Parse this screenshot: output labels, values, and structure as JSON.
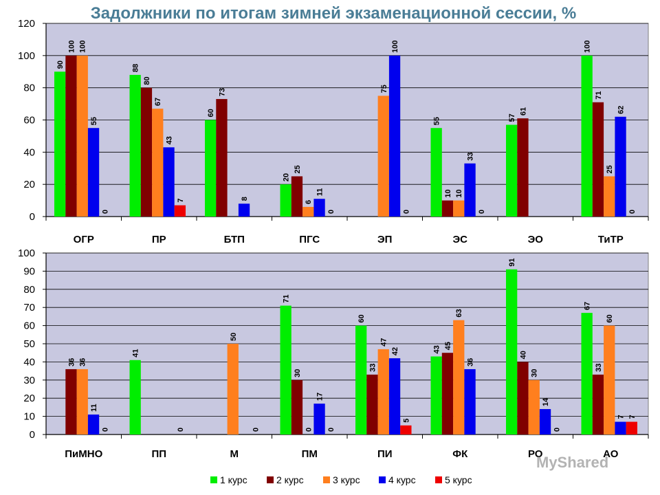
{
  "title": "Задолжники по итогам зимней экзаменационной сессии, %",
  "watermark": "MyShared",
  "legend": [
    "1 курс",
    "2 курс",
    "3 курс",
    "4 курс",
    "5 курс"
  ],
  "colors": [
    "#00ee00",
    "#800000",
    "#ff7f1e",
    "#0000ee",
    "#ee0000"
  ],
  "chart_data": [
    {
      "type": "bar",
      "title": "Задолжники по итогам зимней экзаменационной сессии, %",
      "categories": [
        "ОГР",
        "ПР",
        "БТП",
        "ПГС",
        "ЭП",
        "ЭС",
        "ЭО",
        "ТиТР"
      ],
      "ylim": [
        0,
        120
      ],
      "yticks": [
        0,
        20,
        40,
        60,
        80,
        100,
        120
      ],
      "grid": true,
      "legend_position": "bottom",
      "series": [
        {
          "name": "1 курс",
          "values": [
            90,
            88,
            60,
            20,
            null,
            55,
            57,
            100
          ]
        },
        {
          "name": "2 курс",
          "values": [
            100,
            80,
            73,
            25,
            null,
            10,
            61,
            71
          ]
        },
        {
          "name": "3 курс",
          "values": [
            100,
            67,
            null,
            6,
            75,
            10,
            null,
            25
          ]
        },
        {
          "name": "4 курс",
          "values": [
            55,
            43,
            8,
            11,
            100,
            33,
            null,
            62
          ]
        },
        {
          "name": "5 курс",
          "values": [
            0,
            7,
            null,
            0,
            0,
            0,
            null,
            0
          ]
        }
      ]
    },
    {
      "type": "bar",
      "categories": [
        "ПиМНО",
        "ПП",
        "М",
        "ПМ",
        "ПИ",
        "ФК",
        "РО",
        "АО"
      ],
      "ylim": [
        0,
        100
      ],
      "yticks": [
        0,
        10,
        20,
        30,
        40,
        50,
        60,
        70,
        80,
        90,
        100
      ],
      "grid": true,
      "legend_position": "bottom",
      "series": [
        {
          "name": "1 курс",
          "values": [
            null,
            41,
            null,
            71,
            60,
            43,
            91,
            67
          ]
        },
        {
          "name": "2 курс",
          "values": [
            36,
            null,
            null,
            30,
            33,
            45,
            40,
            33
          ]
        },
        {
          "name": "3 курс",
          "values": [
            36,
            null,
            50,
            0,
            47,
            63,
            30,
            60
          ]
        },
        {
          "name": "4 курс",
          "values": [
            11,
            null,
            null,
            17,
            42,
            36,
            14,
            7
          ]
        },
        {
          "name": "5 курс",
          "values": [
            0,
            0,
            0,
            0,
            5,
            null,
            0,
            7
          ]
        }
      ]
    }
  ]
}
